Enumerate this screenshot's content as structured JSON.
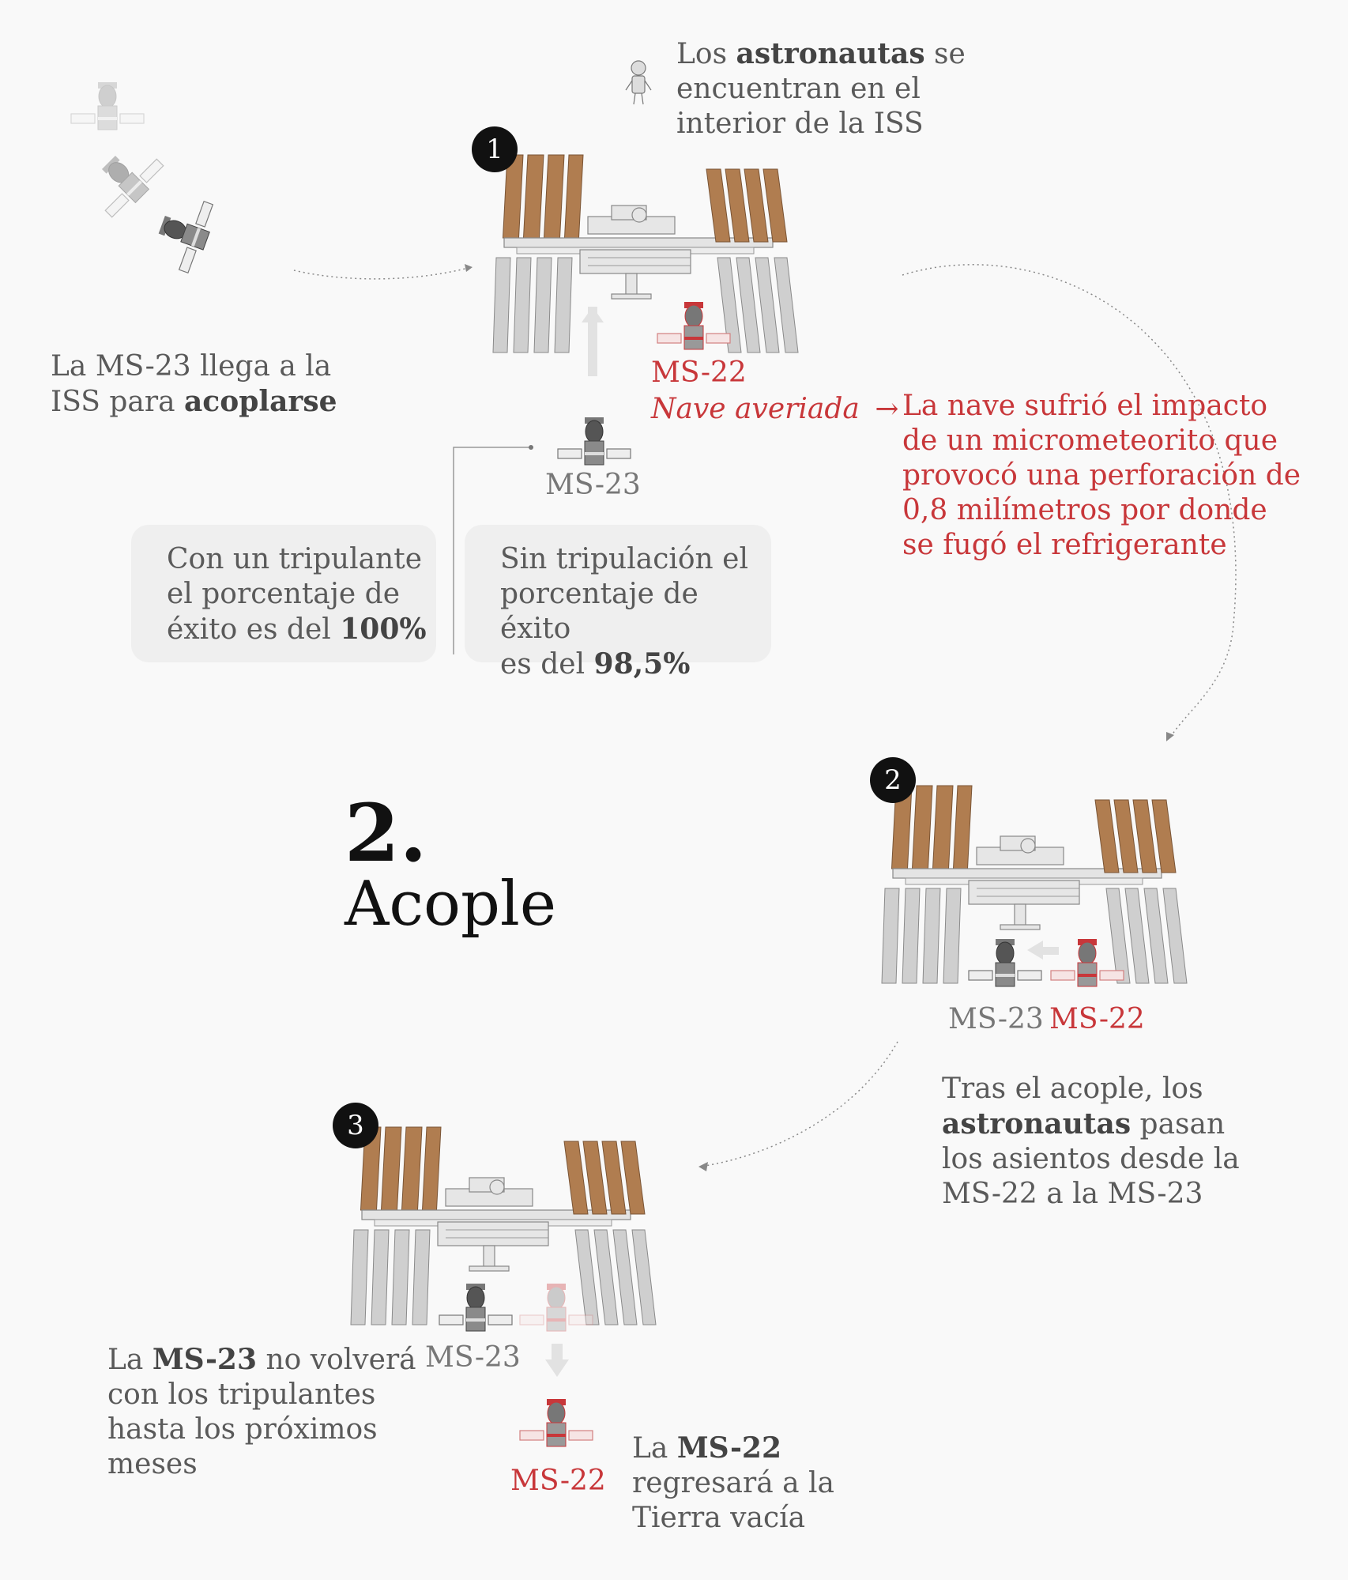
{
  "step1": {
    "badge": "1",
    "astronauts_pre": "Los ",
    "astronauts_bold": "astronautas",
    "astronauts_post_1": " se",
    "astronauts_line2": "encuentran en el",
    "astronauts_line3": "interior de la ISS",
    "arrive_line1": "La MS-23 llega a la",
    "arrive_pre": "ISS para ",
    "arrive_bold": "acoplarse",
    "ms22_label": "MS-22",
    "damaged_label": "Nave averiada",
    "damaged_arrow": "→",
    "impact_lines": [
      "La nave sufrió el impacto",
      "de un micrometeorito que",
      "provocó una perforación de",
      "0,8 milímetros por donde",
      "se fugó el refrigerante"
    ],
    "ms23_label": "MS-23",
    "box_crew_line1": "Con un tripulante",
    "box_crew_line2": "el porcentaje de",
    "box_crew_pre": "éxito es del ",
    "box_crew_bold": "100%",
    "box_nocrew_line1": "Sin tripulación el",
    "box_nocrew_line2": "porcentaje de éxito",
    "box_nocrew_pre": "es del ",
    "box_nocrew_bold": "98,5%"
  },
  "section": {
    "number": "2.",
    "title": "Acople"
  },
  "step2": {
    "badge": "2",
    "ms23_label": "MS-23",
    "ms22_label": "MS-22",
    "text_line1": "Tras el acople, los",
    "text_bold": "astronautas",
    "text_post": " pasan",
    "text_line3": "los asientos desde la",
    "text_line4": "MS-22 a la MS-23"
  },
  "step3": {
    "badge": "3",
    "ms23_label": "MS-23",
    "ms22_label": "MS-22",
    "left_pre": "La ",
    "left_bold": "MS-23",
    "left_post": " no volverá",
    "left_line2": "con los tripulantes",
    "left_line3": "hasta los próximos",
    "left_line4": "meses",
    "right_pre": "La ",
    "right_bold": "MS-22",
    "right_line2": "regresará a la",
    "right_line3": "Tierra vacía"
  },
  "colors": {
    "accent_red": "#c8373a",
    "solar_panel": "#b07d50",
    "text_gray": "#5a5a5a"
  }
}
